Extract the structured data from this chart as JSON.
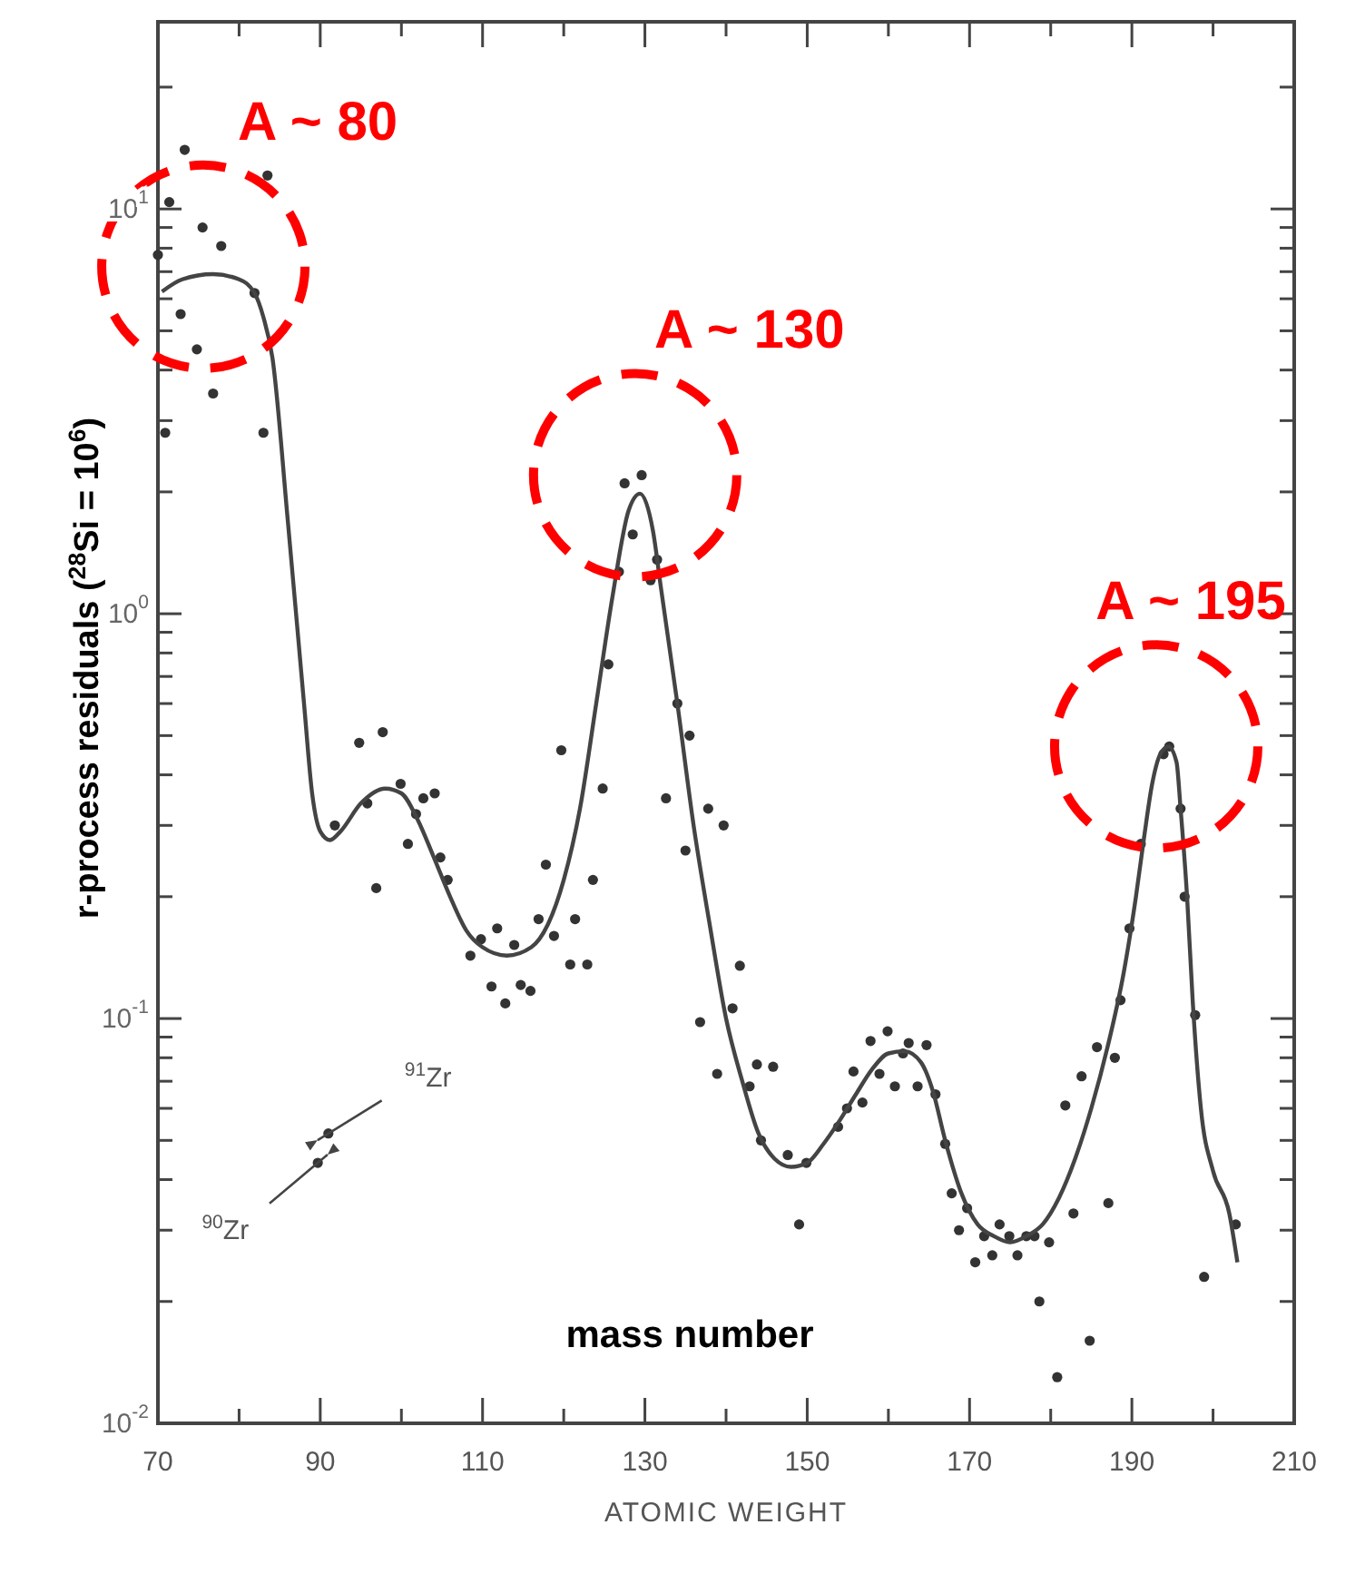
{
  "chart_data": {
    "type": "scatter",
    "xlabel": "ATOMIC WEIGHT",
    "ylabel": "r-process residuals ($^{28}$Si = 10$^{6}$)",
    "log": "y",
    "grid": false,
    "marker": "circle",
    "xlim": [
      70,
      210
    ],
    "xticks": [
      70,
      {
        "value": 80,
        "label": null
      },
      90,
      {
        "value": 100,
        "label": null
      },
      110,
      {
        "value": 120,
        "label": null
      },
      130,
      {
        "value": 140,
        "label": null
      },
      150,
      {
        "value": 160,
        "label": null
      },
      170,
      {
        "value": 180,
        "label": null
      },
      190,
      {
        "value": 200,
        "label": null
      },
      210
    ],
    "ylim": [
      0.01,
      29
    ],
    "yticks": [
      {
        "value": 0.01,
        "label": "10$^{-2}$"
      },
      {
        "value": 0.02,
        "label": null
      },
      {
        "value": 0.03,
        "label": null
      },
      {
        "value": 0.04,
        "label": null
      },
      {
        "value": 0.05,
        "label": null
      },
      {
        "value": 0.06,
        "label": null
      },
      {
        "value": 0.07,
        "label": null
      },
      {
        "value": 0.08,
        "label": null
      },
      {
        "value": 0.09,
        "label": null
      },
      {
        "value": 0.1,
        "label": "10$^{-1}$"
      },
      {
        "value": 0.2,
        "label": null
      },
      {
        "value": 0.3,
        "label": null
      },
      {
        "value": 0.4,
        "label": null
      },
      {
        "value": 0.5,
        "label": null
      },
      {
        "value": 0.6,
        "label": null
      },
      {
        "value": 0.7,
        "label": null
      },
      {
        "value": 0.8,
        "label": null
      },
      {
        "value": 0.9,
        "label": null
      },
      {
        "value": 1,
        "label": "10$^{0}$"
      },
      {
        "value": 2,
        "label": null
      },
      {
        "value": 3,
        "label": null
      },
      {
        "value": 4,
        "label": null
      },
      {
        "value": 5,
        "label": null
      },
      {
        "value": 6,
        "label": null
      },
      {
        "value": 7,
        "label": null
      },
      {
        "value": 8,
        "label": null
      },
      {
        "value": 9,
        "label": null
      },
      {
        "value": 10,
        "label": "10$^{1}$"
      },
      {
        "value": 20,
        "label": null
      }
    ],
    "series": [
      {
        "color": "#333333",
        "x": [
          70,
          70.9,
          71.4,
          72.8,
          73.3,
          74.8,
          75.5,
          76.8,
          77.8,
          81.9,
          83,
          83.5,
          89.7,
          91,
          91.8,
          94.8,
          95.8,
          96.9,
          97.7,
          99.9,
          100.8,
          101.8,
          102.7,
          104.1,
          104.8,
          105.7,
          108.5,
          109.8,
          111.1,
          111.8,
          112.8,
          113.9,
          114.7,
          115.9,
          116.9,
          117.8,
          118.8,
          119.7,
          120.8,
          121.4,
          122.9,
          123.6,
          124.8,
          125.5,
          126.8,
          127.5,
          128.5,
          129.6,
          130.7,
          131.5,
          132.6,
          134,
          135,
          135.5,
          136.8,
          137.8,
          138.9,
          139.7,
          140.8,
          141.7,
          142.9,
          143.8,
          144.3,
          145.8,
          147.6,
          149,
          149.9,
          153.8,
          154.9,
          155.7,
          156.8,
          157.8,
          158.9,
          159.9,
          160.8,
          161.8,
          162.5,
          163.6,
          164.7,
          165.8,
          167,
          167.8,
          168.7,
          169.7,
          170.7,
          171.8,
          172.8,
          173.7,
          174.9,
          175.9,
          177,
          178,
          178.6,
          179.8,
          180.8,
          181.8,
          182.8,
          183.8,
          184.8,
          185.7,
          187.1,
          187.9,
          188.6,
          189.7,
          191.1,
          193.9,
          194.6,
          196,
          196.5,
          197.8,
          198.9,
          202.8
        ],
        "values": [
          7.7,
          2.8,
          10.4,
          5.5,
          14,
          4.5,
          9,
          3.5,
          8.1,
          6.2,
          2.8,
          12.1,
          0.044,
          0.052,
          0.3,
          0.48,
          0.34,
          0.21,
          0.51,
          0.38,
          0.27,
          0.32,
          0.35,
          0.36,
          0.25,
          0.22,
          0.143,
          0.157,
          0.12,
          0.167,
          0.109,
          0.152,
          0.121,
          0.117,
          0.176,
          0.24,
          0.16,
          0.46,
          0.136,
          0.176,
          0.136,
          0.22,
          0.37,
          0.75,
          1.27,
          2.1,
          1.57,
          2.2,
          1.21,
          1.36,
          0.35,
          0.6,
          0.26,
          0.5,
          0.098,
          0.33,
          0.073,
          0.3,
          0.106,
          0.135,
          0.068,
          0.077,
          0.05,
          0.076,
          0.046,
          0.031,
          0.044,
          0.054,
          0.06,
          0.074,
          0.062,
          0.088,
          0.073,
          0.093,
          0.068,
          0.082,
          0.087,
          0.068,
          0.086,
          0.065,
          0.049,
          0.037,
          0.03,
          0.034,
          0.025,
          0.029,
          0.026,
          0.031,
          0.029,
          0.026,
          0.029,
          0.029,
          0.02,
          0.028,
          0.013,
          0.061,
          0.033,
          0.072,
          0.016,
          0.085,
          0.035,
          0.08,
          0.111,
          0.167,
          0.27,
          0.45,
          0.47,
          0.33,
          0.2,
          0.102,
          0.023,
          0.031
        ]
      },
      {
        "type": "line",
        "color": "#444444",
        "marker": "none",
        "line_style": "solid",
        "x": [
          70.5,
          73,
          76.8,
          80,
          81.9,
          83,
          84.1,
          86,
          88,
          89,
          90,
          91.2,
          92.5,
          95,
          98,
          100,
          102,
          104,
          106,
          108,
          110,
          113,
          116,
          118,
          120,
          122,
          124,
          126,
          128,
          129.4,
          131,
          132,
          134,
          136,
          138,
          140,
          142,
          144,
          146,
          148,
          150,
          152,
          154,
          156,
          158,
          160,
          162,
          164,
          165.5,
          167,
          169,
          171,
          173,
          175,
          177,
          179,
          181,
          183,
          185,
          187,
          189,
          190.5,
          191.5,
          192.5,
          193.5,
          194.5,
          195.5,
          196,
          196.8,
          197.5,
          198.5,
          200,
          202,
          203
        ],
        "values": [
          6.25,
          6.7,
          6.9,
          6.7,
          6.2,
          5.4,
          4.3,
          1.7,
          0.6,
          0.36,
          0.29,
          0.276,
          0.29,
          0.34,
          0.37,
          0.36,
          0.31,
          0.25,
          0.2,
          0.165,
          0.15,
          0.143,
          0.15,
          0.17,
          0.22,
          0.33,
          0.6,
          1.1,
          1.8,
          1.98,
          1.6,
          1.15,
          0.6,
          0.3,
          0.17,
          0.1,
          0.07,
          0.052,
          0.045,
          0.043,
          0.044,
          0.049,
          0.056,
          0.065,
          0.075,
          0.082,
          0.083,
          0.078,
          0.066,
          0.05,
          0.037,
          0.031,
          0.029,
          0.028,
          0.029,
          0.031,
          0.036,
          0.045,
          0.06,
          0.085,
          0.13,
          0.2,
          0.28,
          0.38,
          0.45,
          0.47,
          0.43,
          0.33,
          0.2,
          0.11,
          0.06,
          0.042,
          0.033,
          0.025
        ]
      }
    ],
    "annotations": [
      {
        "text": "A ~ 80",
        "x": 75.6,
        "y": 7.2
      },
      {
        "text": "A ~ 130",
        "x": 128.8,
        "y": 2.2
      },
      {
        "text": "A ~ 195",
        "x": 193,
        "y": 0.47
      },
      {
        "text": "$^{90}$Zr",
        "x": 89.7,
        "y": 0.044
      },
      {
        "text": "$^{91}$Zr",
        "x": 91,
        "y": 0.052
      },
      "mass number"
    ]
  }
}
